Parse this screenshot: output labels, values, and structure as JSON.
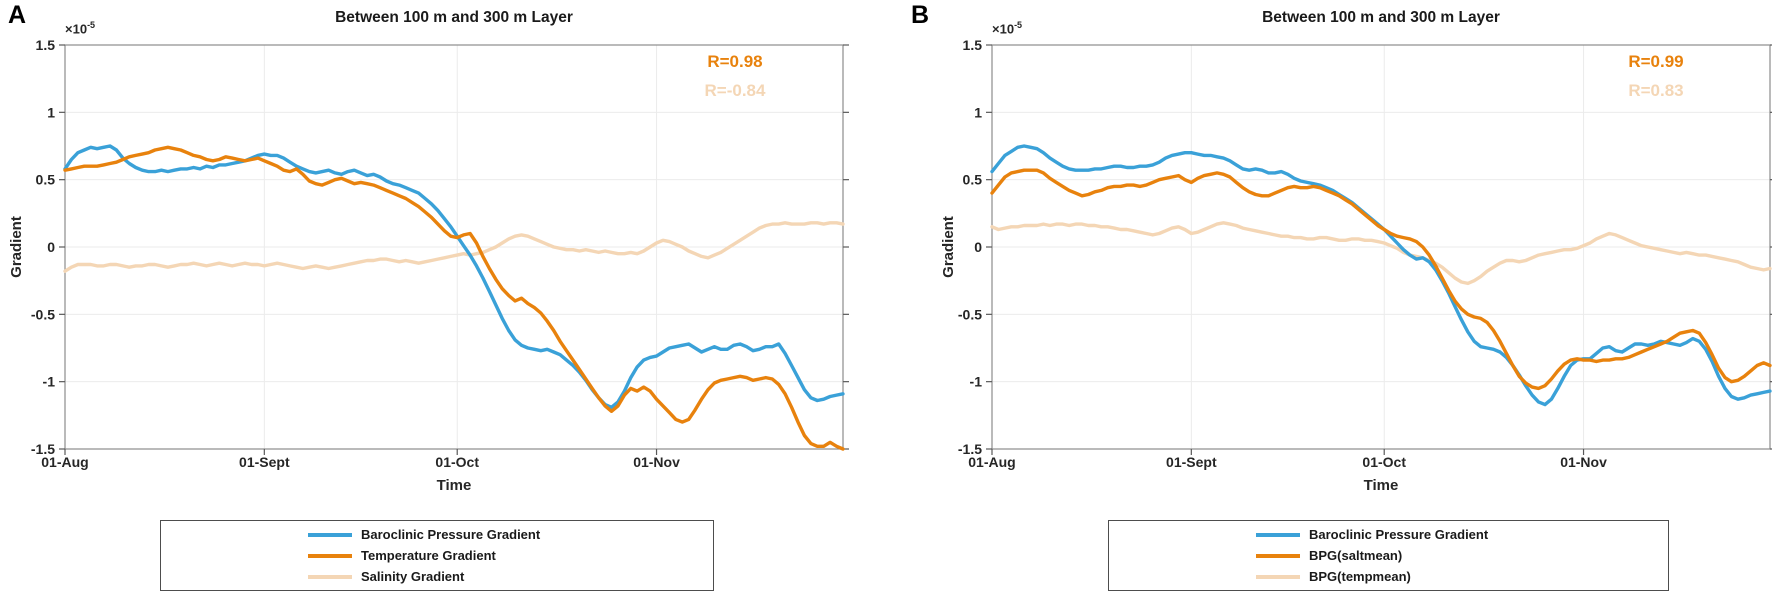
{
  "figure": {
    "background": "#ffffff",
    "panels": [
      {
        "label": "A"
      },
      {
        "label": "B"
      }
    ]
  },
  "style_colors": {
    "axis_box": "#8c8c8c",
    "grid": "#ebebeb",
    "tick": "#595959",
    "tick_label": "#262626",
    "legend_border": "#4d4d4d"
  },
  "chart_data": [
    {
      "type": "line",
      "panel": "A",
      "title": "Between 100 m and 300 m Layer",
      "y_exp_base": "×10",
      "y_exp_power": "-5",
      "ylabel": "Gradient",
      "xlabel": "Time",
      "ylim": [
        -1.5,
        1.5
      ],
      "yticks": [
        1.5,
        1,
        0.5,
        0,
        -0.5,
        -1,
        -1.5
      ],
      "ytick_labels": [
        "1.5",
        "1",
        "0.5",
        "0",
        "-0.5",
        "-1",
        "-1.5"
      ],
      "x_range_days": [
        0,
        121
      ],
      "xtick_days": [
        0,
        31,
        61,
        92
      ],
      "xtick_labels": [
        "01-Aug",
        "01-Sept",
        "01-Oct",
        "01-Nov"
      ],
      "grid": true,
      "legend_position": "below",
      "correlations": [
        {
          "label": "R=0.98",
          "color": "#E8820D"
        },
        {
          "label": "R=-0.84",
          "color": "#F4D6B5"
        }
      ],
      "series": [
        {
          "name": "Baroclinic Pressure Gradient",
          "color": "#3AA1D8",
          "values": [
            0.58,
            0.65,
            0.7,
            0.72,
            0.74,
            0.73,
            0.74,
            0.75,
            0.72,
            0.66,
            0.62,
            0.59,
            0.57,
            0.56,
            0.56,
            0.57,
            0.56,
            0.57,
            0.58,
            0.58,
            0.59,
            0.58,
            0.6,
            0.59,
            0.61,
            0.61,
            0.62,
            0.63,
            0.64,
            0.66,
            0.68,
            0.69,
            0.68,
            0.68,
            0.66,
            0.63,
            0.6,
            0.58,
            0.56,
            0.55,
            0.56,
            0.57,
            0.55,
            0.54,
            0.56,
            0.57,
            0.55,
            0.53,
            0.54,
            0.52,
            0.49,
            0.47,
            0.46,
            0.44,
            0.42,
            0.4,
            0.36,
            0.32,
            0.27,
            0.21,
            0.15,
            0.08,
            0.01,
            -0.06,
            -0.14,
            -0.23,
            -0.33,
            -0.43,
            -0.53,
            -0.62,
            -0.69,
            -0.73,
            -0.75,
            -0.76,
            -0.77,
            -0.76,
            -0.78,
            -0.8,
            -0.84,
            -0.88,
            -0.93,
            -0.99,
            -1.06,
            -1.12,
            -1.17,
            -1.19,
            -1.15,
            -1.07,
            -0.97,
            -0.89,
            -0.84,
            -0.82,
            -0.81,
            -0.78,
            -0.75,
            -0.74,
            -0.73,
            -0.72,
            -0.75,
            -0.78,
            -0.76,
            -0.74,
            -0.76,
            -0.76,
            -0.73,
            -0.72,
            -0.74,
            -0.77,
            -0.76,
            -0.74,
            -0.74,
            -0.72,
            -0.79,
            -0.88,
            -0.97,
            -1.06,
            -1.12,
            -1.14,
            -1.13,
            -1.11,
            -1.1,
            -1.09
          ]
        },
        {
          "name": "Temperature Gradient",
          "color": "#E8820D",
          "values": [
            0.57,
            0.58,
            0.59,
            0.6,
            0.6,
            0.6,
            0.61,
            0.62,
            0.63,
            0.65,
            0.67,
            0.68,
            0.69,
            0.7,
            0.72,
            0.73,
            0.74,
            0.73,
            0.72,
            0.7,
            0.68,
            0.67,
            0.65,
            0.64,
            0.65,
            0.67,
            0.66,
            0.65,
            0.64,
            0.65,
            0.66,
            0.64,
            0.62,
            0.6,
            0.57,
            0.56,
            0.58,
            0.54,
            0.49,
            0.47,
            0.46,
            0.48,
            0.5,
            0.51,
            0.49,
            0.47,
            0.48,
            0.47,
            0.46,
            0.44,
            0.42,
            0.4,
            0.38,
            0.36,
            0.33,
            0.3,
            0.26,
            0.22,
            0.17,
            0.12,
            0.08,
            0.07,
            0.09,
            0.1,
            0.03,
            -0.07,
            -0.16,
            -0.24,
            -0.31,
            -0.36,
            -0.4,
            -0.38,
            -0.42,
            -0.45,
            -0.49,
            -0.55,
            -0.62,
            -0.7,
            -0.77,
            -0.84,
            -0.91,
            -0.98,
            -1.05,
            -1.12,
            -1.18,
            -1.22,
            -1.18,
            -1.1,
            -1.05,
            -1.07,
            -1.04,
            -1.07,
            -1.13,
            -1.18,
            -1.23,
            -1.28,
            -1.3,
            -1.28,
            -1.21,
            -1.13,
            -1.06,
            -1.01,
            -0.99,
            -0.98,
            -0.97,
            -0.96,
            -0.97,
            -0.99,
            -0.98,
            -0.97,
            -0.98,
            -1.02,
            -1.09,
            -1.19,
            -1.3,
            -1.4,
            -1.46,
            -1.48,
            -1.48,
            -1.45,
            -1.48,
            -1.5
          ]
        },
        {
          "name": "Salinity Gradient",
          "color": "#F4D6B5",
          "values": [
            -0.18,
            -0.15,
            -0.13,
            -0.13,
            -0.13,
            -0.14,
            -0.14,
            -0.13,
            -0.13,
            -0.14,
            -0.15,
            -0.14,
            -0.14,
            -0.13,
            -0.13,
            -0.14,
            -0.15,
            -0.14,
            -0.13,
            -0.13,
            -0.12,
            -0.13,
            -0.14,
            -0.13,
            -0.12,
            -0.13,
            -0.14,
            -0.13,
            -0.12,
            -0.13,
            -0.13,
            -0.14,
            -0.13,
            -0.12,
            -0.13,
            -0.14,
            -0.15,
            -0.16,
            -0.15,
            -0.14,
            -0.15,
            -0.16,
            -0.15,
            -0.14,
            -0.13,
            -0.12,
            -0.11,
            -0.1,
            -0.1,
            -0.09,
            -0.09,
            -0.1,
            -0.11,
            -0.1,
            -0.11,
            -0.12,
            -0.11,
            -0.1,
            -0.09,
            -0.08,
            -0.07,
            -0.06,
            -0.05,
            -0.06,
            -0.05,
            -0.04,
            -0.02,
            0.0,
            0.03,
            0.06,
            0.08,
            0.09,
            0.08,
            0.06,
            0.04,
            0.02,
            0.0,
            -0.01,
            -0.02,
            -0.02,
            -0.03,
            -0.02,
            -0.03,
            -0.04,
            -0.03,
            -0.04,
            -0.05,
            -0.05,
            -0.04,
            -0.05,
            -0.03,
            0.0,
            0.03,
            0.05,
            0.04,
            0.02,
            0.0,
            -0.03,
            -0.05,
            -0.07,
            -0.08,
            -0.06,
            -0.04,
            -0.01,
            0.02,
            0.05,
            0.08,
            0.11,
            0.14,
            0.16,
            0.17,
            0.17,
            0.18,
            0.17,
            0.17,
            0.17,
            0.18,
            0.18,
            0.17,
            0.18,
            0.18,
            0.17
          ]
        }
      ]
    },
    {
      "type": "line",
      "panel": "B",
      "title": "Between 100 m and 300 m Layer",
      "y_exp_base": "×10",
      "y_exp_power": "-5",
      "ylabel": "Gradient",
      "xlabel": "Time",
      "ylim": [
        -1.5,
        1.5
      ],
      "yticks": [
        1.5,
        1,
        0.5,
        0,
        -0.5,
        -1,
        -1.5
      ],
      "ytick_labels": [
        "1.5",
        "1",
        "0.5",
        "0",
        "-0.5",
        "-1",
        "-1.5"
      ],
      "x_range_days": [
        0,
        121
      ],
      "xtick_days": [
        0,
        31,
        61,
        92
      ],
      "xtick_labels": [
        "01-Aug",
        "01-Sept",
        "01-Oct",
        "01-Nov"
      ],
      "grid": true,
      "legend_position": "below",
      "correlations": [
        {
          "label": "R=0.99",
          "color": "#E8820D"
        },
        {
          "label": "R=0.83",
          "color": "#F4D6B5"
        }
      ],
      "series": [
        {
          "name": "Baroclinic Pressure Gradient",
          "color": "#3AA1D8",
          "values": [
            0.56,
            0.62,
            0.68,
            0.71,
            0.74,
            0.75,
            0.74,
            0.73,
            0.7,
            0.66,
            0.63,
            0.6,
            0.58,
            0.57,
            0.57,
            0.57,
            0.58,
            0.58,
            0.59,
            0.6,
            0.6,
            0.59,
            0.59,
            0.6,
            0.6,
            0.61,
            0.63,
            0.66,
            0.68,
            0.69,
            0.7,
            0.7,
            0.69,
            0.68,
            0.68,
            0.67,
            0.66,
            0.64,
            0.61,
            0.58,
            0.57,
            0.58,
            0.57,
            0.55,
            0.55,
            0.56,
            0.54,
            0.51,
            0.49,
            0.48,
            0.47,
            0.46,
            0.44,
            0.42,
            0.39,
            0.36,
            0.33,
            0.29,
            0.25,
            0.21,
            0.17,
            0.13,
            0.08,
            0.03,
            -0.02,
            -0.06,
            -0.09,
            -0.08,
            -0.11,
            -0.17,
            -0.25,
            -0.34,
            -0.44,
            -0.54,
            -0.63,
            -0.7,
            -0.74,
            -0.75,
            -0.76,
            -0.78,
            -0.82,
            -0.88,
            -0.95,
            -1.03,
            -1.1,
            -1.15,
            -1.17,
            -1.13,
            -1.05,
            -0.96,
            -0.88,
            -0.84,
            -0.83,
            -0.83,
            -0.79,
            -0.75,
            -0.74,
            -0.77,
            -0.78,
            -0.75,
            -0.72,
            -0.72,
            -0.73,
            -0.72,
            -0.7,
            -0.71,
            -0.72,
            -0.73,
            -0.71,
            -0.68,
            -0.7,
            -0.76,
            -0.85,
            -0.96,
            -1.05,
            -1.11,
            -1.13,
            -1.12,
            -1.1,
            -1.09,
            -1.08,
            -1.07
          ]
        },
        {
          "name": "BPG(saltmean)",
          "color": "#E8820D",
          "values": [
            0.4,
            0.46,
            0.52,
            0.55,
            0.56,
            0.57,
            0.57,
            0.57,
            0.55,
            0.51,
            0.48,
            0.45,
            0.42,
            0.4,
            0.38,
            0.39,
            0.41,
            0.42,
            0.44,
            0.45,
            0.45,
            0.46,
            0.46,
            0.45,
            0.46,
            0.48,
            0.5,
            0.51,
            0.52,
            0.53,
            0.5,
            0.48,
            0.51,
            0.53,
            0.54,
            0.55,
            0.54,
            0.52,
            0.48,
            0.44,
            0.41,
            0.39,
            0.38,
            0.38,
            0.4,
            0.42,
            0.44,
            0.45,
            0.44,
            0.44,
            0.45,
            0.44,
            0.42,
            0.4,
            0.38,
            0.35,
            0.32,
            0.28,
            0.24,
            0.2,
            0.16,
            0.13,
            0.1,
            0.08,
            0.07,
            0.06,
            0.04,
            0.0,
            -0.06,
            -0.14,
            -0.23,
            -0.32,
            -0.4,
            -0.46,
            -0.5,
            -0.52,
            -0.53,
            -0.56,
            -0.62,
            -0.7,
            -0.79,
            -0.88,
            -0.96,
            -1.01,
            -1.04,
            -1.05,
            -1.03,
            -0.98,
            -0.92,
            -0.87,
            -0.84,
            -0.83,
            -0.84,
            -0.84,
            -0.85,
            -0.84,
            -0.84,
            -0.83,
            -0.83,
            -0.82,
            -0.8,
            -0.78,
            -0.76,
            -0.74,
            -0.72,
            -0.7,
            -0.67,
            -0.64,
            -0.63,
            -0.62,
            -0.64,
            -0.71,
            -0.8,
            -0.9,
            -0.97,
            -1.0,
            -0.99,
            -0.96,
            -0.92,
            -0.88,
            -0.86,
            -0.88
          ]
        },
        {
          "name": "BPG(tempmean)",
          "color": "#F4D6B5",
          "values": [
            0.15,
            0.13,
            0.14,
            0.15,
            0.15,
            0.16,
            0.16,
            0.16,
            0.17,
            0.16,
            0.17,
            0.17,
            0.16,
            0.17,
            0.17,
            0.16,
            0.16,
            0.15,
            0.15,
            0.14,
            0.13,
            0.13,
            0.12,
            0.11,
            0.1,
            0.09,
            0.1,
            0.12,
            0.14,
            0.15,
            0.13,
            0.1,
            0.11,
            0.13,
            0.15,
            0.17,
            0.18,
            0.17,
            0.16,
            0.14,
            0.13,
            0.12,
            0.11,
            0.1,
            0.09,
            0.08,
            0.08,
            0.07,
            0.07,
            0.06,
            0.06,
            0.07,
            0.07,
            0.06,
            0.05,
            0.05,
            0.06,
            0.06,
            0.05,
            0.05,
            0.04,
            0.03,
            0.01,
            -0.01,
            -0.04,
            -0.06,
            -0.07,
            -0.08,
            -0.1,
            -0.12,
            -0.15,
            -0.19,
            -0.23,
            -0.26,
            -0.27,
            -0.25,
            -0.22,
            -0.18,
            -0.15,
            -0.12,
            -0.1,
            -0.1,
            -0.11,
            -0.1,
            -0.08,
            -0.06,
            -0.05,
            -0.04,
            -0.03,
            -0.02,
            -0.02,
            -0.01,
            0.01,
            0.03,
            0.06,
            0.08,
            0.1,
            0.09,
            0.07,
            0.05,
            0.03,
            0.01,
            0.0,
            -0.01,
            -0.02,
            -0.03,
            -0.04,
            -0.05,
            -0.04,
            -0.05,
            -0.06,
            -0.06,
            -0.07,
            -0.08,
            -0.09,
            -0.1,
            -0.11,
            -0.13,
            -0.15,
            -0.16,
            -0.17,
            -0.16
          ]
        }
      ]
    }
  ]
}
